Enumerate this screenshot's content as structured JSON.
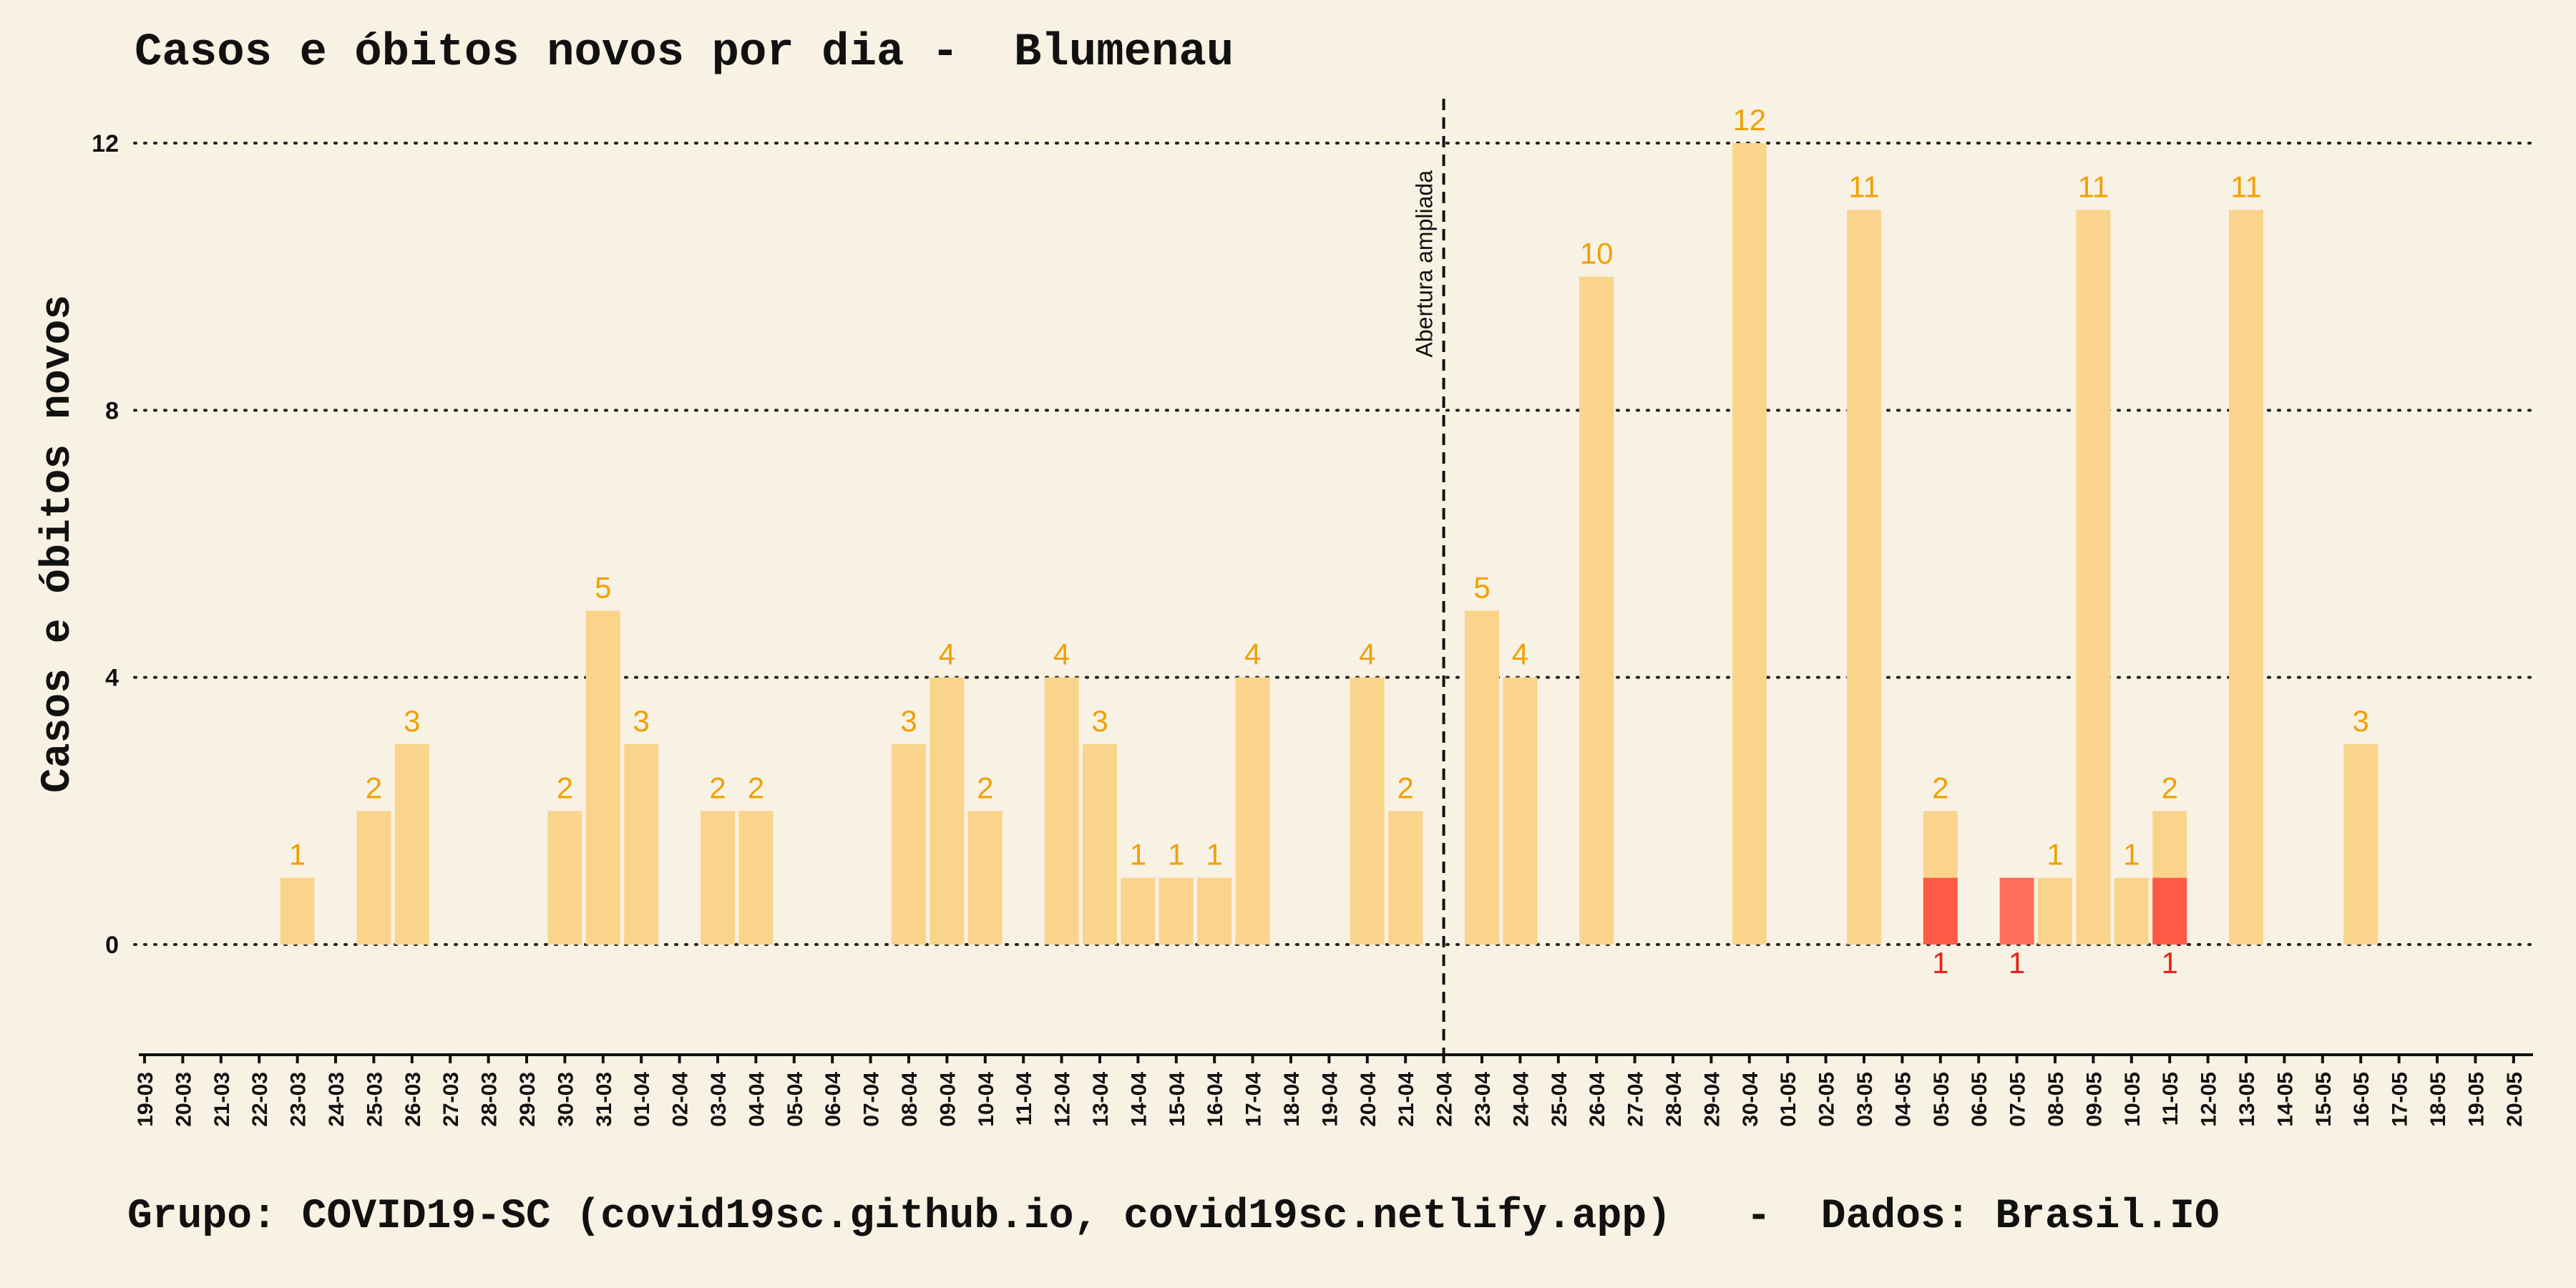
{
  "colors": {
    "background": "#f8f2e4",
    "cases": "#fbd48c",
    "deaths": "#ff5a45",
    "deaths_alt": "#ff6e5c",
    "case_label": "#f0a000",
    "death_label": "#e8231a"
  },
  "chart_data": {
    "type": "bar",
    "title": "Casos e óbitos novos por dia -  Blumenau",
    "ylabel": "Casos e óbitos novos",
    "xlabel": "",
    "ylim": [
      0,
      12
    ],
    "yticks": [
      0,
      4,
      8,
      12
    ],
    "grid": "horizontal dotted",
    "categories": [
      "19-03",
      "20-03",
      "21-03",
      "22-03",
      "23-03",
      "24-03",
      "25-03",
      "26-03",
      "27-03",
      "28-03",
      "29-03",
      "30-03",
      "31-03",
      "01-04",
      "02-04",
      "03-04",
      "04-04",
      "05-04",
      "06-04",
      "07-04",
      "08-04",
      "09-04",
      "10-04",
      "11-04",
      "12-04",
      "13-04",
      "14-04",
      "15-04",
      "16-04",
      "17-04",
      "18-04",
      "19-04",
      "20-04",
      "21-04",
      "22-04",
      "23-04",
      "24-04",
      "25-04",
      "26-04",
      "27-04",
      "28-04",
      "29-04",
      "30-04",
      "01-05",
      "02-05",
      "03-05",
      "04-05",
      "05-05",
      "06-05",
      "07-05",
      "08-05",
      "09-05",
      "10-05",
      "11-05",
      "12-05",
      "13-05",
      "14-05",
      "15-05",
      "16-05",
      "17-05",
      "18-05",
      "19-05",
      "20-05"
    ],
    "series": [
      {
        "name": "Casos",
        "values": [
          0,
          0,
          0,
          0,
          1,
          0,
          2,
          3,
          0,
          0,
          0,
          2,
          5,
          3,
          0,
          2,
          2,
          0,
          0,
          0,
          3,
          4,
          2,
          0,
          4,
          3,
          1,
          1,
          1,
          4,
          0,
          0,
          4,
          2,
          0,
          5,
          4,
          0,
          10,
          0,
          0,
          0,
          12,
          0,
          0,
          11,
          0,
          2,
          0,
          0,
          1,
          11,
          1,
          2,
          0,
          11,
          0,
          0,
          3,
          0,
          0,
          0,
          0
        ]
      },
      {
        "name": "Óbitos",
        "values": [
          0,
          0,
          0,
          0,
          0,
          0,
          0,
          0,
          0,
          0,
          0,
          0,
          0,
          0,
          0,
          0,
          0,
          0,
          0,
          0,
          0,
          0,
          0,
          0,
          0,
          0,
          0,
          0,
          0,
          0,
          0,
          0,
          0,
          0,
          0,
          0,
          0,
          0,
          0,
          0,
          0,
          0,
          0,
          0,
          0,
          0,
          0,
          1,
          0,
          1,
          0,
          0,
          0,
          1,
          0,
          0,
          0,
          0,
          0,
          0,
          0,
          0,
          0
        ]
      }
    ],
    "annotations": [
      {
        "category": "22-04",
        "text": "Abertura ampliada",
        "style": "vertical dashed line"
      }
    ]
  },
  "footer": "Grupo: COVID19-SC (covid19sc.github.io, covid19sc.netlify.app)   -  Dados: Brasil.IO"
}
